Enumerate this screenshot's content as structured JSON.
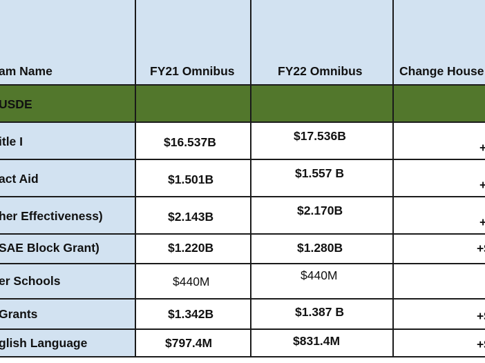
{
  "colors": {
    "header_bg": "#d2e2f1",
    "agency_row_bg": "#52772c",
    "body_bg": "#ffffff",
    "border": "#1a1a1a"
  },
  "table": {
    "headers": [
      "am Name",
      "FY21 Omnibus",
      "FY22 Omnibus",
      "Change House"
    ],
    "agency_row": "USDE",
    "rows": [
      {
        "name": "itle I",
        "fy21": "$16.537B",
        "fy22": "$17.536B",
        "change": "+"
      },
      {
        "name": "act Aid",
        "fy21": "$1.501B",
        "fy22": "$1.557 B",
        "change": "+"
      },
      {
        "name": "her Effectiveness)",
        "fy21": "$2.143B",
        "fy22": "$2.170B",
        "change": "+"
      },
      {
        "name": "SAE Block Grant)",
        "fy21": "$1.220B",
        "fy22": "$1.280B",
        "change": "+$"
      },
      {
        "name": "er Schools",
        "fy21": "$440M",
        "fy22": "$440M",
        "change": ""
      },
      {
        "name": "Grants",
        "fy21": "$1.342B",
        "fy22": "$1.387 B",
        "change": "+$"
      },
      {
        "name": "glish Language",
        "fy21": "$797.4M",
        "fy22": "$831.4M",
        "change": "+$"
      }
    ]
  }
}
